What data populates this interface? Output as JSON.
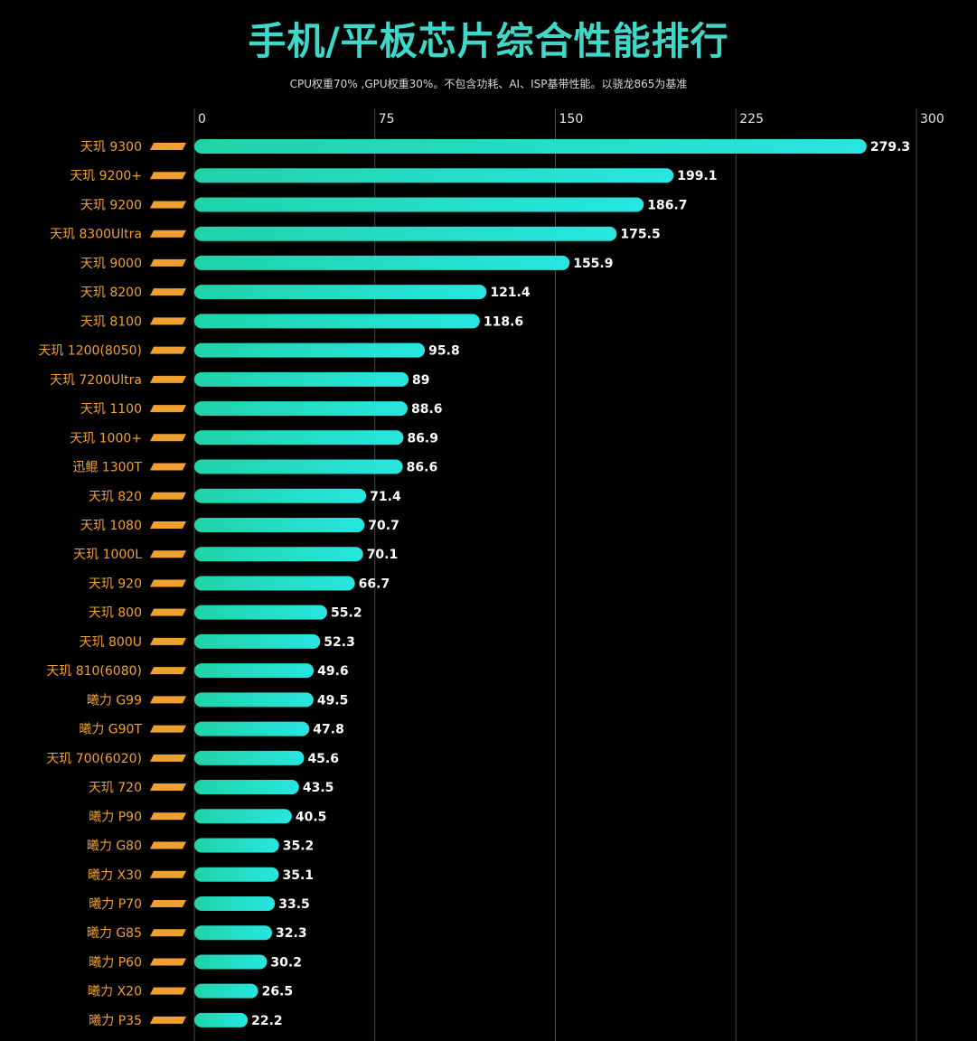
{
  "header": {
    "title_part1": "手机/平板芯片",
    "title_part2": "综合性能排行",
    "subtitle": "CPU权重70% ,GPU权重30%。不包含功耗、AI、ISP基带性能。以骁龙865为基准"
  },
  "colors": {
    "bar_start": "#1fd3a8",
    "bar_end": "#27e6e0",
    "category_text": "#f0a030",
    "badge": "#f0a030",
    "grid": "#4a4a4a",
    "background": "#000000"
  },
  "chart_data": {
    "type": "bar",
    "orientation": "horizontal",
    "title": "手机/平板芯片综合性能排行",
    "subtitle": "CPU权重70% ,GPU权重30%。不包含功耗、AI、ISP基带性能。以骁龙865为基准",
    "xlim": [
      0,
      300
    ],
    "xticks": [
      0,
      75,
      150,
      225,
      300
    ],
    "grid": true,
    "categories": [
      "天玑 9300",
      "天玑 9200+",
      "天玑 9200",
      "天玑 8300Ultra",
      "天玑 9000",
      "天玑 8200",
      "天玑 8100",
      "天玑 1200(8050)",
      "天玑 7200Ultra",
      "天玑 1100",
      "天玑 1000+",
      "迅鲲 1300T",
      "天玑 820",
      "天玑 1080",
      "天玑 1000L",
      "天玑 920",
      "天玑 800",
      "天玑 800U",
      "天玑 810(6080)",
      "曦力 G99",
      "曦力 G90T",
      "天玑 700(6020)",
      "天玑 720",
      "曦力 P90",
      "曦力 G80",
      "曦力 X30",
      "曦力 P70",
      "曦力 G85",
      "曦力 P60",
      "曦力 X20",
      "曦力 P35"
    ],
    "values": [
      279.3,
      199.1,
      186.7,
      175.5,
      155.9,
      121.4,
      118.6,
      95.8,
      89,
      88.6,
      86.9,
      86.6,
      71.4,
      70.7,
      70.1,
      66.7,
      55.2,
      52.3,
      49.6,
      49.5,
      47.8,
      45.6,
      43.5,
      40.5,
      35.2,
      35.1,
      33.5,
      32.3,
      30.2,
      26.5,
      22.2
    ]
  }
}
